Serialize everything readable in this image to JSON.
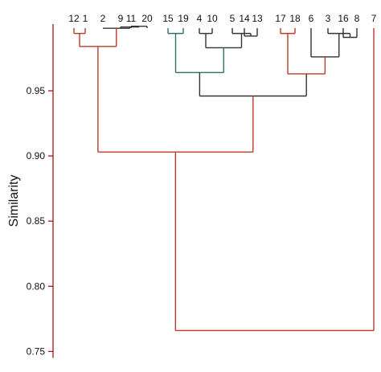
{
  "chart_data": {
    "type": "dendrogram",
    "ylabel": "Similarity",
    "ylim": [
      0.745,
      1.0
    ],
    "yticks": [
      0.75,
      0.8,
      0.85,
      0.9,
      0.95
    ],
    "ytick_labels": [
      "0.75",
      "0.80",
      "0.85",
      "0.90",
      "0.95"
    ],
    "leaves": [
      "12",
      "1",
      "2",
      "9",
      "11",
      "20",
      "15",
      "19",
      "4",
      "10",
      "5",
      "14",
      "13",
      "17",
      "18",
      "6",
      "3",
      "16",
      "8",
      "7"
    ],
    "colors": {
      "axis": "#a01818",
      "red_branch": "#c0392b",
      "dark_branch": "#333333",
      "teal_branch": "#2f7070"
    },
    "merges": [
      {
        "a": "12",
        "b": "1",
        "similarity": 0.994,
        "color": "red"
      },
      {
        "a": "11",
        "b": "20",
        "similarity": 0.9995,
        "color": "dark"
      },
      {
        "a": "9",
        "b": "11+20",
        "similarity": 0.999,
        "color": "dark"
      },
      {
        "a": "2",
        "b": "9+11+20",
        "similarity": 0.998,
        "color": "dark"
      },
      {
        "a": "12+1",
        "b": "2+9+11+20",
        "similarity": 0.984,
        "color": "red"
      },
      {
        "a": "15",
        "b": "19",
        "similarity": 0.994,
        "color": "teal"
      },
      {
        "a": "4",
        "b": "10",
        "similarity": 0.994,
        "color": "dark"
      },
      {
        "a": "14",
        "b": "13",
        "similarity": 0.992,
        "color": "dark"
      },
      {
        "a": "5",
        "b": "14+13",
        "similarity": 0.994,
        "color": "dark"
      },
      {
        "a": "4+10",
        "b": "5+14+13",
        "similarity": 0.983,
        "color": "dark"
      },
      {
        "a": "15+19",
        "b": "4+10+5+14+13",
        "similarity": 0.964,
        "color": "teal"
      },
      {
        "a": "17",
        "b": "18",
        "similarity": 0.994,
        "color": "red"
      },
      {
        "a": "16",
        "b": "8",
        "similarity": 0.991,
        "color": "dark"
      },
      {
        "a": "3",
        "b": "16+8",
        "similarity": 0.994,
        "color": "dark"
      },
      {
        "a": "6",
        "b": "3+16+8",
        "similarity": 0.976,
        "color": "dark"
      },
      {
        "a": "17+18",
        "b": "6+3+16+8",
        "similarity": 0.963,
        "color": "red"
      },
      {
        "a": "15..13",
        "b": "17..8",
        "similarity": 0.946,
        "color": "dark"
      },
      {
        "a": "12..20",
        "b": "15..8",
        "similarity": 0.903,
        "color": "red"
      },
      {
        "a": "12..8",
        "b": "7",
        "similarity": 0.766,
        "color": "red"
      }
    ]
  }
}
